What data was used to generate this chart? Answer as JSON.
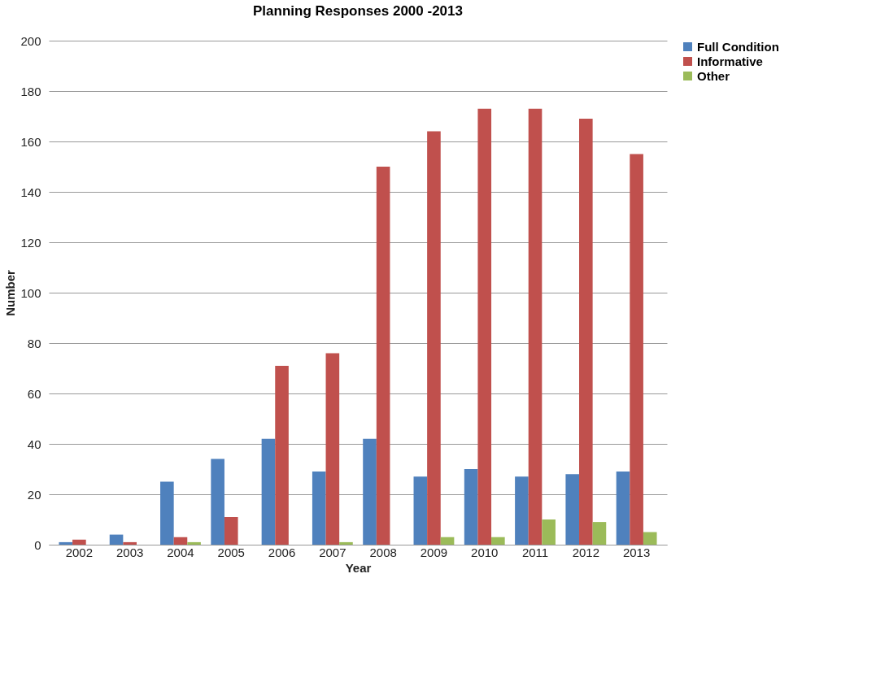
{
  "chart_data": {
    "type": "bar",
    "title": "Planning Responses 2000 -2013",
    "xlabel": "Year",
    "ylabel": "Number",
    "categories": [
      "2002",
      "2003",
      "2004",
      "2005",
      "2006",
      "2007",
      "2008",
      "2009",
      "2010",
      "2011",
      "2012",
      "2013"
    ],
    "series": [
      {
        "name": "Full Condition",
        "color": "#4f81bd",
        "values": [
          1,
          4,
          25,
          34,
          42,
          29,
          42,
          27,
          30,
          27,
          28,
          29
        ]
      },
      {
        "name": "Informative",
        "color": "#c0504d",
        "values": [
          2,
          1,
          3,
          11,
          71,
          76,
          150,
          164,
          173,
          173,
          169,
          155
        ]
      },
      {
        "name": "Other",
        "color": "#9bbb59",
        "values": [
          0,
          0,
          1,
          0,
          0,
          1,
          0,
          3,
          3,
          10,
          9,
          5
        ]
      }
    ],
    "ylim": [
      0,
      200
    ],
    "yticks": [
      0,
      20,
      40,
      60,
      80,
      100,
      120,
      140,
      160,
      180,
      200
    ],
    "grid": "y",
    "legend": "right"
  }
}
